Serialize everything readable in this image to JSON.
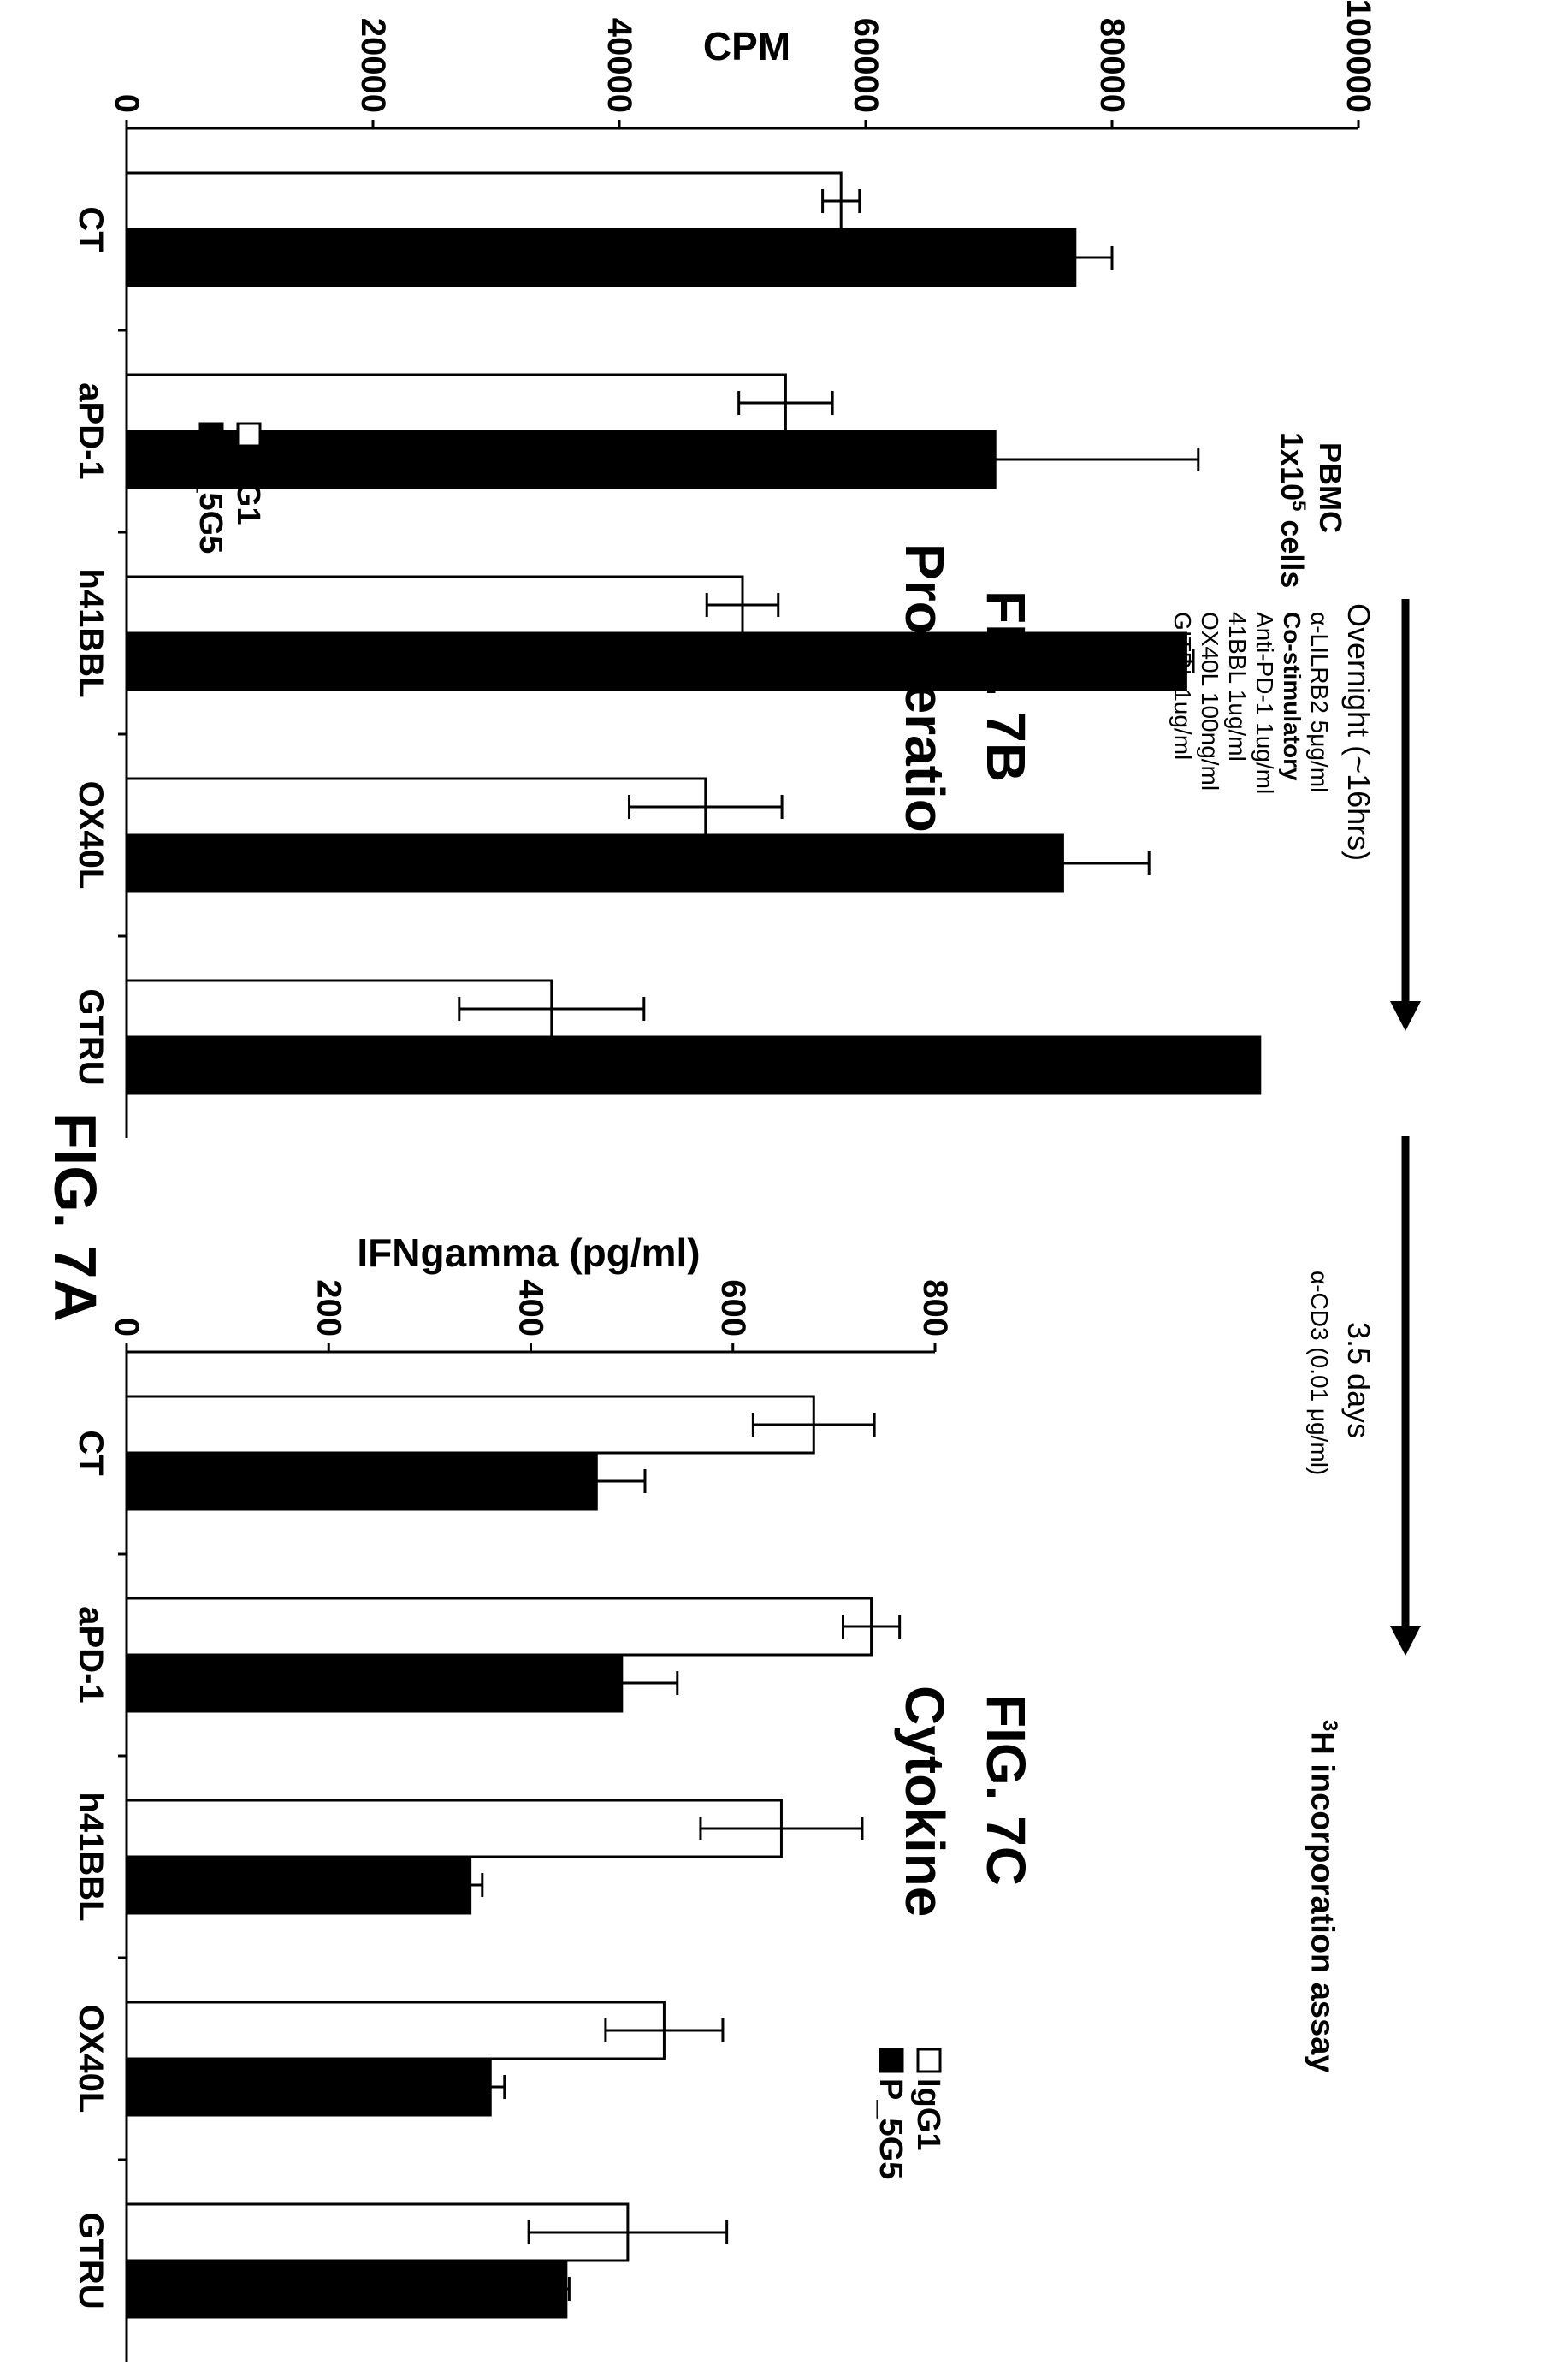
{
  "fig7a": {
    "title": "FIG. 7A",
    "pbmc_label": "PBMC",
    "cells_prefix": "1x10",
    "cells_exp": "5",
    "cells_suffix": " cells",
    "step1_title": "Overnight (~16hrs)",
    "step1_lines": [
      "α-LILRB2 5μg/ml",
      "Co-stimulatory",
      "Anti-PD-1 1ug/ml",
      "41BBL 1ug/ml",
      "OX40L 100ng/ml",
      "GITRL 1ug/ml"
    ],
    "step2_title": "3.5 days",
    "step2_line": "α-CD3 (0.01 μg/ml)",
    "assay_sup": "3",
    "assay_text": "H incorporation assay"
  },
  "fig7b_title": "FIG. 7B",
  "fig7b_subtitle": "Proliferation",
  "fig7c_title": "FIG. 7C",
  "fig7c_subtitle": "Cytokine",
  "chart_data": [
    {
      "type": "bar",
      "title": "Proliferation",
      "ylabel": "CPM",
      "ylim": [
        0,
        100000
      ],
      "yticks": [
        "0",
        "20000",
        "40000",
        "60000",
        "80000",
        "100000"
      ],
      "categories": [
        "CT",
        "aPD-1",
        "h41BBL",
        "OX40L",
        "GTRU"
      ],
      "legend_position": "top-left",
      "series": [
        {
          "name": "IgG1",
          "color": "#ffffff",
          "values": [
            58000,
            53500,
            50000,
            47000,
            34500
          ],
          "errors": [
            1500,
            3800,
            2900,
            6200,
            7500
          ]
        },
        {
          "name": "P_5G5",
          "color": "#000000",
          "values": [
            77000,
            70500,
            86000,
            76000,
            92000
          ],
          "errors": [
            3000,
            16500,
            600,
            7000,
            0
          ]
        }
      ]
    },
    {
      "type": "bar",
      "title": "Cytokine",
      "ylabel": "IFNgamma (pg/ml)",
      "ylim": [
        0,
        800
      ],
      "yticks": [
        "0",
        "200",
        "400",
        "600",
        "800"
      ],
      "categories": [
        "CT",
        "aPD-1",
        "h41BBL",
        "OX40L",
        "GTRU"
      ],
      "legend_position": "bottom-left",
      "series": [
        {
          "name": "IgG1",
          "color": "#ffffff",
          "values": [
            680,
            737,
            648,
            532,
            496
          ],
          "errors": [
            60,
            28,
            80,
            58,
            98
          ]
        },
        {
          "name": "P_5G5",
          "color": "#000000",
          "values": [
            465,
            490,
            340,
            360,
            435
          ],
          "errors": [
            48,
            55,
            12,
            14,
            3
          ]
        }
      ]
    }
  ]
}
